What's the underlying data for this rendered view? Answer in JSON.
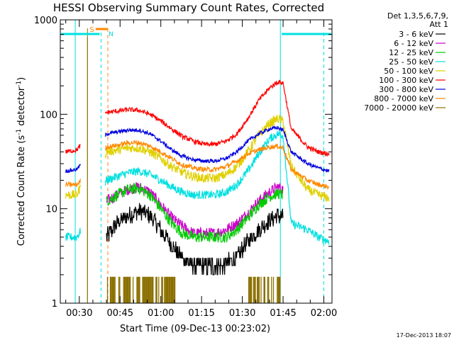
{
  "chart_data": {
    "type": "line",
    "title": "HESSI Observing Summary Count Rates, Corrected",
    "xlabel": "Start Time (09-Dec-13 00:23:02)",
    "ylabel_main": "Corrected Count Rate (s",
    "ylabel_sup1": "-1",
    "ylabel_mid": " detector",
    "ylabel_sup2": "-1",
    "ylabel_end": ")",
    "yscale": "log",
    "ylim": [
      1,
      1000
    ],
    "xlim_minutes": [
      23.0,
      123.0
    ],
    "x_ticks": [
      {
        "label": "00:30",
        "minute": 30
      },
      {
        "label": "00:45",
        "minute": 45
      },
      {
        "label": "01:00",
        "minute": 60
      },
      {
        "label": "01:15",
        "minute": 75
      },
      {
        "label": "01:30",
        "minute": 90
      },
      {
        "label": "01:45",
        "minute": 105
      },
      {
        "label": "02:00",
        "minute": 120
      }
    ],
    "y_ticks": [
      {
        "label": "1",
        "value": 1
      },
      {
        "label": "10",
        "value": 10
      },
      {
        "label": "100",
        "value": 100
      },
      {
        "label": "1000",
        "value": 1000
      }
    ],
    "legend_header": [
      "Det 1,3,5,6,7,9,",
      "Att 1"
    ],
    "legend_position": "right",
    "series": [
      {
        "name": "3 - 6 keV",
        "color": "#000000",
        "points": [
          [
            40,
            5
          ],
          [
            44,
            7
          ],
          [
            48,
            8.5
          ],
          [
            52,
            9.5
          ],
          [
            56,
            8.5
          ],
          [
            60,
            6
          ],
          [
            64,
            4
          ],
          [
            68,
            3
          ],
          [
            72,
            2.5
          ],
          [
            76,
            2.5
          ],
          [
            80,
            2.5
          ],
          [
            84,
            2.6
          ],
          [
            88,
            3
          ],
          [
            92,
            4.5
          ],
          [
            96,
            6
          ],
          [
            100,
            7.5
          ],
          [
            103,
            8.5
          ],
          [
            105,
            8
          ]
        ]
      },
      {
        "name": "6 - 12 keV",
        "color": "#cc00cc",
        "points": [
          [
            40,
            12
          ],
          [
            44,
            14
          ],
          [
            48,
            16
          ],
          [
            52,
            17
          ],
          [
            56,
            15
          ],
          [
            60,
            11
          ],
          [
            64,
            8
          ],
          [
            68,
            6.5
          ],
          [
            72,
            5.5
          ],
          [
            76,
            5.5
          ],
          [
            80,
            5.5
          ],
          [
            84,
            6
          ],
          [
            88,
            7
          ],
          [
            92,
            9
          ],
          [
            96,
            12
          ],
          [
            100,
            15
          ],
          [
            103,
            17
          ],
          [
            105,
            16
          ]
        ]
      },
      {
        "name": "12 - 25 keV",
        "color": "#00cc00",
        "points": [
          [
            40,
            12
          ],
          [
            44,
            14
          ],
          [
            48,
            16
          ],
          [
            52,
            16.5
          ],
          [
            56,
            14
          ],
          [
            60,
            10
          ],
          [
            64,
            7
          ],
          [
            68,
            5.5
          ],
          [
            72,
            5
          ],
          [
            76,
            5
          ],
          [
            80,
            5
          ],
          [
            84,
            5
          ],
          [
            88,
            6
          ],
          [
            92,
            8
          ],
          [
            96,
            11
          ],
          [
            100,
            13.5
          ],
          [
            103,
            14.5
          ],
          [
            105,
            14
          ]
        ]
      },
      {
        "name": "25 - 50 keV",
        "color": "#00e0e0",
        "points": [
          [
            25,
            5
          ],
          [
            29,
            5
          ],
          [
            30,
            5.5
          ],
          [
            40,
            20
          ],
          [
            44,
            22
          ],
          [
            48,
            24
          ],
          [
            52,
            25
          ],
          [
            56,
            23
          ],
          [
            60,
            20
          ],
          [
            64,
            17
          ],
          [
            68,
            15
          ],
          [
            72,
            14
          ],
          [
            76,
            14
          ],
          [
            80,
            14
          ],
          [
            84,
            15
          ],
          [
            88,
            18
          ],
          [
            92,
            25
          ],
          [
            96,
            38
          ],
          [
            100,
            55
          ],
          [
            103,
            62
          ],
          [
            105,
            60
          ],
          [
            108,
            7
          ],
          [
            114,
            6
          ],
          [
            118,
            5
          ],
          [
            122,
            4.5
          ]
        ]
      },
      {
        "name": "50 - 100 keV",
        "color": "#e0d000",
        "points": [
          [
            25,
            14
          ],
          [
            29,
            14
          ],
          [
            30,
            16
          ],
          [
            40,
            40
          ],
          [
            44,
            42
          ],
          [
            48,
            44
          ],
          [
            52,
            44
          ],
          [
            56,
            40
          ],
          [
            60,
            34
          ],
          [
            64,
            28
          ],
          [
            68,
            24
          ],
          [
            72,
            22
          ],
          [
            76,
            21
          ],
          [
            80,
            21
          ],
          [
            84,
            23
          ],
          [
            88,
            28
          ],
          [
            92,
            40
          ],
          [
            96,
            60
          ],
          [
            100,
            80
          ],
          [
            103,
            90
          ],
          [
            105,
            85
          ],
          [
            108,
            28
          ],
          [
            114,
            16
          ],
          [
            118,
            14
          ],
          [
            122,
            13
          ]
        ]
      },
      {
        "name": "100 - 300 keV",
        "color": "#ff0000",
        "points": [
          [
            25,
            40
          ],
          [
            29,
            42
          ],
          [
            30,
            45
          ],
          [
            40,
            105
          ],
          [
            44,
            108
          ],
          [
            48,
            112
          ],
          [
            52,
            110
          ],
          [
            56,
            100
          ],
          [
            60,
            85
          ],
          [
            64,
            70
          ],
          [
            68,
            58
          ],
          [
            72,
            52
          ],
          [
            76,
            48
          ],
          [
            80,
            48
          ],
          [
            84,
            52
          ],
          [
            88,
            62
          ],
          [
            92,
            90
          ],
          [
            96,
            140
          ],
          [
            100,
            190
          ],
          [
            103,
            220
          ],
          [
            105,
            215
          ],
          [
            108,
            70
          ],
          [
            114,
            45
          ],
          [
            118,
            40
          ],
          [
            122,
            38
          ]
        ]
      },
      {
        "name": "300 - 800 keV",
        "color": "#0000dd",
        "points": [
          [
            25,
            25
          ],
          [
            29,
            26
          ],
          [
            30,
            28
          ],
          [
            40,
            62
          ],
          [
            44,
            65
          ],
          [
            48,
            68
          ],
          [
            52,
            68
          ],
          [
            56,
            62
          ],
          [
            60,
            52
          ],
          [
            64,
            42
          ],
          [
            68,
            36
          ],
          [
            72,
            33
          ],
          [
            76,
            32
          ],
          [
            80,
            32
          ],
          [
            84,
            34
          ],
          [
            88,
            40
          ],
          [
            92,
            52
          ],
          [
            96,
            62
          ],
          [
            100,
            70
          ],
          [
            103,
            72
          ],
          [
            105,
            68
          ],
          [
            108,
            40
          ],
          [
            114,
            30
          ],
          [
            118,
            27
          ],
          [
            122,
            25
          ]
        ]
      },
      {
        "name": "800 - 7000 keV",
        "color": "#ff8800",
        "points": [
          [
            25,
            18
          ],
          [
            29,
            18
          ],
          [
            30,
            19
          ],
          [
            40,
            45
          ],
          [
            44,
            47
          ],
          [
            48,
            50
          ],
          [
            52,
            50
          ],
          [
            56,
            46
          ],
          [
            60,
            40
          ],
          [
            64,
            34
          ],
          [
            68,
            29
          ],
          [
            72,
            27
          ],
          [
            76,
            26
          ],
          [
            80,
            26
          ],
          [
            84,
            28
          ],
          [
            88,
            32
          ],
          [
            92,
            38
          ],
          [
            96,
            42
          ],
          [
            100,
            45
          ],
          [
            103,
            46
          ],
          [
            105,
            44
          ],
          [
            108,
            26
          ],
          [
            114,
            20
          ],
          [
            118,
            18
          ],
          [
            122,
            17
          ]
        ]
      },
      {
        "name": "7000 - 20000 keV",
        "color": "#8b7000",
        "points": [
          [
            40,
            1.5
          ],
          [
            44,
            1.9
          ],
          [
            48,
            1.6
          ],
          [
            52,
            1.9
          ],
          [
            56,
            1.5
          ],
          [
            60,
            1.8
          ],
          [
            64,
            1.5
          ],
          [
            66,
            1.7
          ],
          [
            92,
            1.6
          ],
          [
            95,
            1.9
          ],
          [
            98,
            1.7
          ],
          [
            101,
            1.9
          ],
          [
            104,
            1.6
          ]
        ]
      }
    ],
    "annotations": {
      "saa_label": "S",
      "night_label": "N",
      "timestamp": "17-Dec-2013 18:07"
    }
  }
}
